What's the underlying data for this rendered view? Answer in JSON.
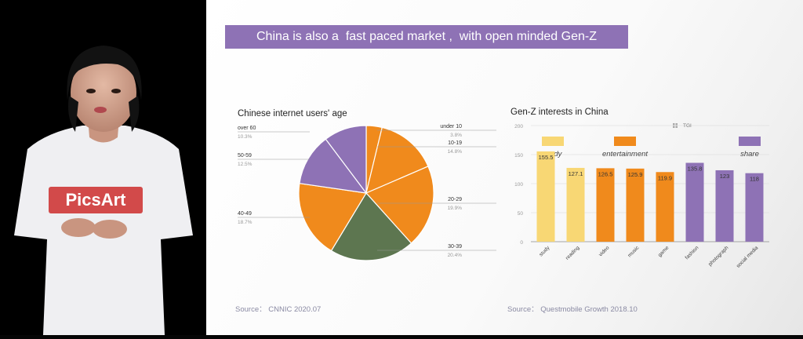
{
  "slide": {
    "banner": "China is also a  fast paced market ,  with open minded Gen-Z",
    "logo_text": "PicsArt"
  },
  "pie_source": "Source： CNNIC 2020.07",
  "bar_source": "Source： Questmobile Growth 2018.10",
  "colors": {
    "purple": "#8e72b5",
    "orange": "#f08a1c",
    "yellow": "#f8d774",
    "green": "#5d7650",
    "banner": "#8e72b5"
  },
  "chart_data": [
    {
      "type": "pie",
      "title": "Chinese internet users' age",
      "categories": [
        "under 10",
        "10-19",
        "20-29",
        "30-39",
        "40-49",
        "50-59",
        "over 60"
      ],
      "values": [
        3.8,
        14.8,
        19.9,
        20.4,
        18.7,
        12.5,
        10.3
      ],
      "value_labels": [
        "3.8%",
        "14.8%",
        "19.9%",
        "20.4%",
        "18.7%",
        "12.5%",
        "10.3%"
      ],
      "slice_colors": [
        "#f08a1c",
        "#f08a1c",
        "#f08a1c",
        "#5d7650",
        "#f08a1c",
        "#8e72b5",
        "#8e72b5"
      ]
    },
    {
      "type": "bar",
      "title": "Gen-Z interests in China",
      "categories": [
        "study",
        "reading",
        "video",
        "music",
        "game",
        "fashion",
        "photograph",
        "social media"
      ],
      "values": [
        155.5,
        127.1,
        126.5,
        125.9,
        119.9,
        135.8,
        123,
        118
      ],
      "value_labels": [
        "155.5",
        "127.1",
        "126.5",
        "125.9",
        "119.9",
        "135.8",
        "123",
        "118"
      ],
      "bar_colors": [
        "#f8d774",
        "#f8d774",
        "#f08a1c",
        "#f08a1c",
        "#f08a1c",
        "#8e72b5",
        "#8e72b5",
        "#8e72b5"
      ],
      "ylim": [
        0,
        200
      ],
      "yticks": [
        0,
        50,
        100,
        150,
        200
      ],
      "grid": true,
      "series_name": "TGI",
      "legend": [
        {
          "label": "study",
          "color": "#f8d774"
        },
        {
          "label": "entertainment",
          "color": "#f08a1c"
        },
        {
          "label": "share",
          "color": "#8e72b5"
        }
      ]
    }
  ]
}
